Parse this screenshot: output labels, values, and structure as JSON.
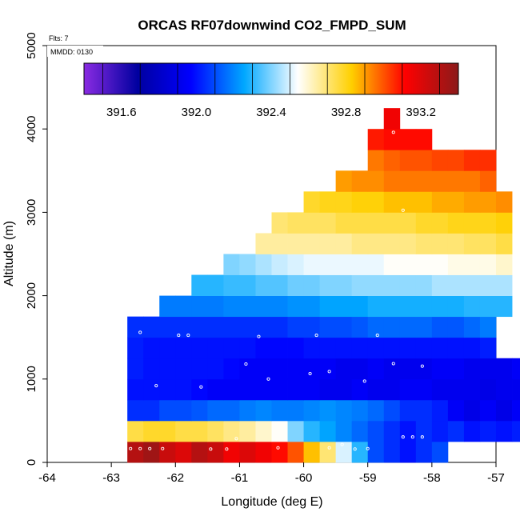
{
  "chart_data": {
    "type": "heatmap",
    "title": "ORCAS RF07downwind CO2_FMPD_SUM",
    "flights_label": "Flts: 7",
    "date_label": "MMDD: 0130",
    "xlabel": "Longitude (deg E)",
    "ylabel": "Altitude (m)",
    "xlim": [
      -64,
      -57
    ],
    "ylim": [
      0,
      5000
    ],
    "xticks": [
      -64,
      -63,
      -62,
      -61,
      -60,
      -59,
      -58,
      -57
    ],
    "yticks": [
      0,
      1000,
      2000,
      3000,
      4000,
      5000
    ],
    "colorbar": {
      "min": 391.4,
      "max": 393.4,
      "ticks": [
        391.6,
        392.0,
        392.4,
        392.8,
        393.2
      ],
      "tick_labels": [
        "391.6",
        "392.0",
        "392.4",
        "392.8",
        "393.2"
      ],
      "stops": [
        "#8a2be2",
        "#0000a0",
        "#0000ff",
        "#00a8ff",
        "#ffffff",
        "#ffd000",
        "#ff0000",
        "#8b1a1a"
      ]
    },
    "cell_width_deg": 0.25,
    "rows": [
      {
        "alt_min": 0,
        "alt_max": 250,
        "lon_start": -62.75,
        "values": [
          393.3,
          393.35,
          393.25,
          393.2,
          393.3,
          393.25,
          393.15,
          393.2,
          393.15,
          393.1,
          393.0,
          392.85,
          392.7,
          392.5,
          392.3,
          392.1,
          392.05,
          392.0,
          392.05,
          392.1
        ]
      },
      {
        "alt_min": 250,
        "alt_max": 500,
        "lon_start": -62.75,
        "values": [
          392.75,
          392.78,
          392.78,
          392.75,
          392.75,
          392.72,
          392.68,
          392.65,
          392.6,
          392.55,
          392.4,
          392.3,
          392.25,
          392.2,
          392.15,
          392.1,
          392.05,
          392.0,
          392.05,
          392.02,
          392.05,
          392.0,
          392.02,
          392.0,
          392.02
        ]
      },
      {
        "alt_min": 500,
        "alt_max": 750,
        "lon_start": -62.75,
        "values": [
          392.05,
          392.05,
          392.1,
          392.1,
          392.12,
          392.15,
          392.15,
          392.18,
          392.2,
          392.18,
          392.18,
          392.2,
          392.22,
          392.2,
          392.18,
          392.15,
          392.1,
          392.05,
          392.05,
          392.02,
          391.95,
          391.9,
          391.95,
          391.9,
          391.95
        ]
      },
      {
        "alt_min": 750,
        "alt_max": 1000,
        "lon_start": -62.75,
        "values": [
          392.0,
          392.0,
          392.0,
          392.0,
          391.98,
          391.95,
          391.95,
          391.95,
          391.95,
          391.95,
          391.95,
          391.95,
          391.92,
          391.92,
          391.95,
          391.92,
          391.92,
          391.95,
          391.95,
          391.92,
          391.92,
          391.92,
          391.9,
          391.92,
          391.92
        ]
      },
      {
        "alt_min": 1000,
        "alt_max": 1250,
        "lon_start": -62.75,
        "values": [
          392.02,
          392.0,
          392.0,
          392.0,
          392.0,
          392.0,
          391.98,
          391.95,
          391.95,
          391.95,
          391.95,
          391.95,
          391.95,
          391.92,
          391.92,
          391.95,
          391.92,
          391.92,
          391.92,
          391.95,
          391.95,
          391.92,
          391.92,
          391.92,
          391.95
        ]
      },
      {
        "alt_min": 1250,
        "alt_max": 1500,
        "lon_start": -62.75,
        "values": [
          392.02,
          392.0,
          392.0,
          392.0,
          392.0,
          392.0,
          392.0,
          392.0,
          391.98,
          391.98,
          391.98,
          392.0,
          392.0,
          392.0,
          392.0,
          392.0,
          392.0,
          392.0,
          392.0,
          392.0,
          392.0,
          392.0,
          392.02
        ]
      },
      {
        "alt_min": 1500,
        "alt_max": 1750,
        "lon_start": -62.75,
        "values": [
          392.05,
          392.05,
          392.05,
          392.05,
          392.05,
          392.05,
          392.05,
          392.05,
          392.05,
          392.05,
          392.08,
          392.08,
          392.1,
          392.1,
          392.12,
          392.15,
          392.15,
          392.15,
          392.15,
          392.12,
          392.12,
          392.15,
          392.18
        ]
      },
      {
        "alt_min": 1750,
        "alt_max": 2000,
        "lon_start": -62.25,
        "values": [
          392.18,
          392.18,
          392.18,
          392.18,
          392.2,
          392.2,
          392.2,
          392.2,
          392.22,
          392.22,
          392.25,
          392.25,
          392.25,
          392.28,
          392.28,
          392.28,
          392.28,
          392.28,
          392.28,
          392.3,
          392.3,
          392.3
        ]
      },
      {
        "alt_min": 2000,
        "alt_max": 2250,
        "lon_start": -61.75,
        "values": [
          392.3,
          392.3,
          392.32,
          392.32,
          392.35,
          392.35,
          392.38,
          392.38,
          392.4,
          392.4,
          392.42,
          392.42,
          392.42,
          392.42,
          392.42,
          392.45,
          392.45,
          392.45,
          392.45,
          392.45
        ]
      },
      {
        "alt_min": 2250,
        "alt_max": 2500,
        "lon_start": -61.25,
        "values": [
          392.4,
          392.42,
          392.45,
          392.48,
          392.5,
          392.52,
          392.52,
          392.52,
          392.52,
          392.52,
          392.55,
          392.55,
          392.55,
          392.55,
          392.57,
          392.57,
          392.57,
          392.6
        ]
      },
      {
        "alt_min": 2500,
        "alt_max": 2750,
        "lon_start": -60.75,
        "values": [
          392.65,
          392.65,
          392.65,
          392.65,
          392.65,
          392.65,
          392.68,
          392.68,
          392.68,
          392.68,
          392.7,
          392.7,
          392.7,
          392.72,
          392.72,
          392.75
        ]
      },
      {
        "alt_min": 2750,
        "alt_max": 3000,
        "lon_start": -60.5,
        "values": [
          392.7,
          392.72,
          392.72,
          392.72,
          392.75,
          392.75,
          392.75,
          392.75,
          392.75,
          392.78,
          392.78,
          392.8,
          392.8,
          392.8,
          392.82
        ]
      },
      {
        "alt_min": 3000,
        "alt_max": 3250,
        "lon_start": -60.0,
        "values": [
          392.78,
          392.8,
          392.8,
          392.82,
          392.82,
          392.85,
          392.85,
          392.85,
          392.88,
          392.88,
          392.9,
          392.9,
          392.92
        ]
      },
      {
        "alt_min": 3250,
        "alt_max": 3500,
        "lon_start": -59.5,
        "values": [
          392.9,
          392.92,
          392.92,
          392.95,
          392.95,
          392.95,
          392.95,
          392.95,
          392.95,
          392.98
        ]
      },
      {
        "alt_min": 3500,
        "alt_max": 3750,
        "lon_start": -59.0,
        "values": [
          392.95,
          392.98,
          393.0,
          393.0,
          393.02,
          393.02,
          393.05,
          393.05
        ]
      },
      {
        "alt_min": 3750,
        "alt_max": 4000,
        "lon_start": -59.0,
        "values": [
          393.08,
          393.1,
          393.1,
          393.1
        ]
      },
      {
        "alt_min": 4000,
        "alt_max": 4250,
        "lon_start": -58.75,
        "values": [
          393.15
        ]
      }
    ],
    "sample_points": [
      {
        "lon": -62.7,
        "alt": 165
      },
      {
        "lon": -62.55,
        "alt": 165
      },
      {
        "lon": -62.4,
        "alt": 165
      },
      {
        "lon": -62.2,
        "alt": 165
      },
      {
        "lon": -61.45,
        "alt": 160
      },
      {
        "lon": -61.2,
        "alt": 160
      },
      {
        "lon": -61.05,
        "alt": 285
      },
      {
        "lon": -60.4,
        "alt": 175
      },
      {
        "lon": -59.6,
        "alt": 175
      },
      {
        "lon": -59.4,
        "alt": 215
      },
      {
        "lon": -59.2,
        "alt": 160
      },
      {
        "lon": -59.0,
        "alt": 165
      },
      {
        "lon": -58.45,
        "alt": 305
      },
      {
        "lon": -58.3,
        "alt": 305
      },
      {
        "lon": -58.15,
        "alt": 305
      },
      {
        "lon": -62.8,
        "alt": 640
      },
      {
        "lon": -62.3,
        "alt": 920
      },
      {
        "lon": -61.6,
        "alt": 905
      },
      {
        "lon": -60.9,
        "alt": 1180
      },
      {
        "lon": -60.55,
        "alt": 1000
      },
      {
        "lon": -59.9,
        "alt": 1065
      },
      {
        "lon": -59.6,
        "alt": 1090
      },
      {
        "lon": -59.05,
        "alt": 975
      },
      {
        "lon": -58.6,
        "alt": 1185
      },
      {
        "lon": -58.15,
        "alt": 1155
      },
      {
        "lon": -62.55,
        "alt": 1560
      },
      {
        "lon": -61.95,
        "alt": 1525
      },
      {
        "lon": -61.8,
        "alt": 1525
      },
      {
        "lon": -60.7,
        "alt": 1510
      },
      {
        "lon": -59.8,
        "alt": 1525
      },
      {
        "lon": -58.85,
        "alt": 1525
      },
      {
        "lon": -58.45,
        "alt": 3025
      },
      {
        "lon": -58.6,
        "alt": 3960
      }
    ]
  }
}
